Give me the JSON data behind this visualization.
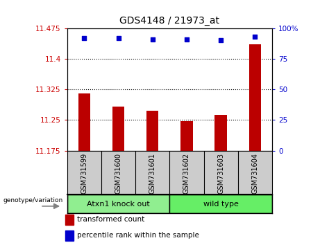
{
  "title": "GDS4148 / 21973_at",
  "samples": [
    "GSM731599",
    "GSM731600",
    "GSM731601",
    "GSM731602",
    "GSM731603",
    "GSM731604"
  ],
  "bar_values": [
    11.315,
    11.283,
    11.272,
    11.247,
    11.262,
    11.435
  ],
  "percentile_values": [
    92,
    92,
    91,
    91,
    90,
    93
  ],
  "y_min": 11.175,
  "y_max": 11.475,
  "y_ticks": [
    11.175,
    11.25,
    11.325,
    11.4,
    11.475
  ],
  "y_tick_labels": [
    "11.175",
    "11.25",
    "11.325",
    "11.4",
    "11.475"
  ],
  "y2_ticks": [
    0,
    25,
    50,
    75,
    100
  ],
  "y2_tick_labels": [
    "0",
    "25",
    "50",
    "75",
    "100%"
  ],
  "bar_color": "#bb0000",
  "dot_color": "#0000cc",
  "grid_lines": [
    11.25,
    11.325,
    11.4
  ],
  "groups": [
    {
      "label": "Atxn1 knock out",
      "start": 0,
      "end": 3,
      "color": "#90ee90"
    },
    {
      "label": "wild type",
      "start": 3,
      "end": 6,
      "color": "#66ee66"
    }
  ],
  "legend_items": [
    {
      "color": "#bb0000",
      "label": "transformed count"
    },
    {
      "color": "#0000cc",
      "label": "percentile rank within the sample"
    }
  ],
  "geno_label": "genotype/variation",
  "bar_width": 0.35,
  "tick_label_color_left": "#cc0000",
  "tick_label_color_right": "#0000cc",
  "fig_width": 4.61,
  "fig_height": 3.54,
  "dpi": 100
}
